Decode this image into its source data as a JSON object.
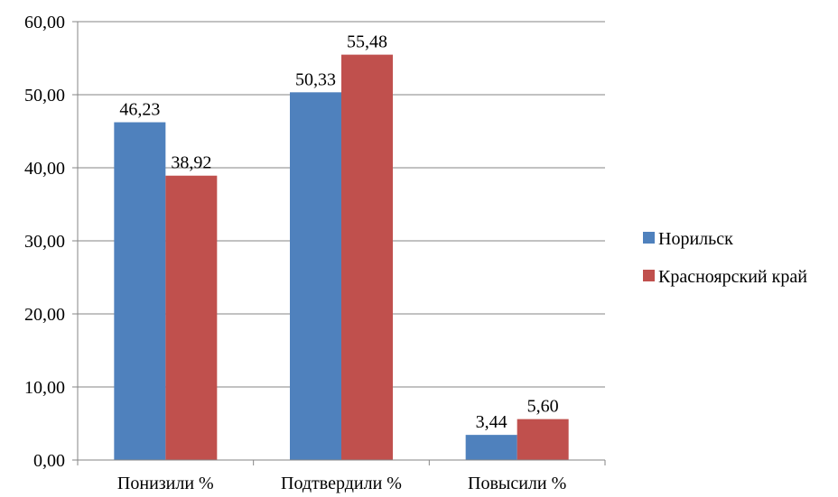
{
  "chart_data": {
    "type": "bar",
    "categories": [
      "Понизили %",
      "Подтвердили %",
      "Повысили %"
    ],
    "series": [
      {
        "name": "Норильск",
        "values": [
          46.23,
          50.33,
          3.44
        ],
        "labels": [
          "46,23",
          "50,33",
          "3,44"
        ],
        "color": "#4F81BD"
      },
      {
        "name": "Красноярский край",
        "values": [
          38.92,
          55.48,
          5.6
        ],
        "labels": [
          "38,92",
          "55,48",
          "5,60"
        ],
        "color": "#C0504D"
      }
    ],
    "ylim": [
      0,
      60
    ],
    "yticks": [
      0,
      10,
      20,
      30,
      40,
      50,
      60
    ],
    "ytick_labels": [
      "0,00",
      "10,00",
      "20,00",
      "30,00",
      "40,00",
      "50,00",
      "60,00"
    ],
    "grid": true,
    "legend_position": "right"
  }
}
